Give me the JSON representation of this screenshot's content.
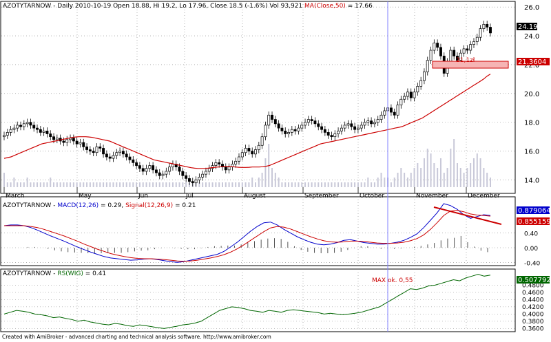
{
  "title_parts": {
    "symbol": "AZOTYTARNOW",
    "info": " - Daily 2010-10-19 Open 18.88, Hi 19.2, Lo 17.96, Close 18.5 (-1.6%) Vol 93,921 ",
    "ma_label": "MA(Close,50)",
    "ma_value": " = 17.66"
  },
  "macd_header": {
    "symbol": "AZOTYTARNOW",
    "macd_label": "MACD(12,26)",
    "macd_value": " = 0.29, ",
    "signal_label": "Signal(12,26,9)",
    "signal_value": " = 0.21"
  },
  "rs_header": {
    "symbol": "AZOTYTARNOW",
    "rs_label": "RS(WIG)",
    "rs_value": " = 0.41"
  },
  "footer": "Created with AmiBroker - advanced charting and technical analysis software. http://www.amibroker.com",
  "annotations": {
    "price_box_label": "21,1zł",
    "rs_max_label": "MAX ok. 0,55"
  },
  "value_boxes": {
    "last_price": "24.19",
    "box_level": "21.3604",
    "macd": "0.879064",
    "signal": "0.855159",
    "rs": "0.507792"
  },
  "colors": {
    "up_candle": "#ffffff",
    "down_candle": "#000000",
    "ma_line": "#cc0000",
    "macd_line": "#0000cc",
    "signal_line": "#cc0000",
    "rs_line": "#006600",
    "volume": "#c8c8d8",
    "cursor_line": "#8080ff",
    "annotation": "#cc0000",
    "grid": "#808080"
  },
  "chart_data": [
    {
      "type": "candlestick",
      "title": "AZOTYTARNOW - Daily",
      "months": [
        "March",
        "May",
        "Jun",
        "Jul",
        "August",
        "September",
        "October",
        "November",
        "December"
      ],
      "ylim": [
        13.5,
        26.2
      ],
      "yticks": [
        "14.0",
        "16.0",
        "18.0",
        "20.0",
        "22.0",
        "24.0",
        "26.0"
      ],
      "grid": true,
      "close": [
        17.1,
        17.3,
        17.5,
        17.6,
        17.8,
        17.7,
        17.9,
        18.0,
        17.8,
        17.6,
        17.5,
        17.3,
        17.4,
        17.2,
        17.0,
        16.8,
        16.9,
        16.7,
        16.6,
        16.8,
        16.9,
        16.7,
        16.5,
        16.6,
        16.3,
        16.1,
        16.0,
        15.9,
        16.3,
        16.2,
        15.8,
        15.6,
        15.5,
        15.7,
        15.9,
        16.0,
        15.8,
        15.6,
        15.4,
        15.2,
        15.0,
        14.8,
        14.6,
        14.8,
        15.0,
        14.7,
        14.5,
        14.3,
        14.4,
        14.6,
        14.9,
        15.1,
        14.9,
        14.6,
        14.3,
        14.1,
        13.9,
        13.8,
        14.0,
        14.2,
        14.4,
        14.6,
        14.8,
        15.0,
        15.2,
        15.1,
        14.9,
        14.7,
        14.9,
        15.1,
        15.3,
        15.6,
        15.9,
        16.2,
        16.0,
        15.8,
        16.1,
        16.4,
        17.0,
        17.8,
        18.5,
        18.2,
        17.9,
        17.6,
        17.4,
        17.2,
        17.3,
        17.5,
        17.4,
        17.6,
        17.8,
        18.0,
        18.2,
        18.1,
        17.9,
        17.7,
        17.5,
        17.3,
        17.1,
        17.0,
        17.2,
        17.4,
        17.6,
        17.8,
        17.9,
        17.7,
        17.5,
        17.6,
        17.8,
        18.0,
        18.1,
        17.9,
        18.0,
        18.2,
        18.5,
        18.8,
        19.0,
        18.7,
        18.5,
        19.2,
        19.6,
        19.8,
        20.1,
        19.7,
        20.1,
        20.5,
        20.9,
        21.5,
        22.3,
        23.0,
        23.5,
        23.2,
        22.6,
        21.4,
        22.2,
        23.0,
        22.6,
        22.3,
        22.8,
        23.1,
        23.0,
        23.4,
        23.6,
        23.9,
        24.5,
        24.8,
        24.6,
        24.2
      ],
      "ma50": [
        15.5,
        15.55,
        15.6,
        15.7,
        15.8,
        15.9,
        16.0,
        16.1,
        16.2,
        16.3,
        16.4,
        16.5,
        16.55,
        16.6,
        16.65,
        16.7,
        16.75,
        16.8,
        16.85,
        16.9,
        16.95,
        16.98,
        17.0,
        17.0,
        17.0,
        16.98,
        16.95,
        16.9,
        16.85,
        16.8,
        16.75,
        16.7,
        16.6,
        16.5,
        16.4,
        16.3,
        16.2,
        16.1,
        16.0,
        15.9,
        15.8,
        15.7,
        15.6,
        15.5,
        15.4,
        15.35,
        15.3,
        15.25,
        15.2,
        15.15,
        15.1,
        15.05,
        15.0,
        14.95,
        14.9,
        14.85,
        14.82,
        14.8,
        14.8,
        14.8,
        14.82,
        14.85,
        14.88,
        14.9,
        14.92,
        14.93,
        14.93,
        14.92,
        14.9,
        14.88,
        14.87,
        14.87,
        14.88,
        14.9,
        14.9,
        14.9,
        14.92,
        14.95,
        15.0,
        15.1,
        15.2,
        15.3,
        15.4,
        15.5,
        15.6,
        15.7,
        15.8,
        15.9,
        16.0,
        16.1,
        16.2,
        16.3,
        16.4,
        16.5,
        16.55,
        16.6,
        16.65,
        16.7,
        16.75,
        16.8,
        16.85,
        16.9,
        16.95,
        17.0,
        17.05,
        17.1,
        17.15,
        17.2,
        17.25,
        17.3,
        17.35,
        17.4,
        17.45,
        17.5,
        17.55,
        17.6,
        17.65,
        17.7,
        17.8,
        17.9,
        18.0,
        18.1,
        18.2,
        18.3,
        18.45,
        18.6,
        18.75,
        18.9,
        19.05,
        19.2,
        19.35,
        19.5,
        19.65,
        19.8,
        19.95,
        20.1,
        20.25,
        20.4,
        20.55,
        20.7,
        20.85,
        21.0,
        21.2,
        21.35
      ],
      "volume": [
        0.3,
        0.1,
        0.1,
        0.2,
        0.1,
        0.1,
        0.1,
        0.2,
        0.1,
        0.1,
        0.1,
        0.1,
        0.1,
        0.1,
        0.2,
        0.1,
        0.1,
        0.1,
        0.1,
        0.1,
        0.1,
        0.1,
        0.1,
        0.1,
        0.1,
        0.1,
        0.1,
        0.1,
        0.1,
        0.1,
        0.1,
        0.1,
        0.1,
        0.1,
        0.1,
        0.1,
        0.1,
        0.1,
        0.1,
        0.1,
        0.1,
        0.1,
        0.1,
        0.1,
        0.1,
        0.1,
        0.1,
        0.1,
        0.1,
        0.1,
        0.1,
        0.1,
        0.1,
        0.1,
        0.1,
        0.1,
        0.1,
        0.1,
        0.1,
        0.1,
        0.1,
        0.1,
        0.1,
        0.1,
        0.1,
        0.1,
        0.1,
        0.1,
        0.1,
        0.1,
        0.1,
        0.1,
        0.1,
        0.1,
        0.1,
        0.2,
        0.1,
        0.2,
        0.3,
        0.6,
        0.9,
        0.4,
        0.3,
        0.2,
        0.1,
        0.1,
        0.1,
        0.1,
        0.1,
        0.1,
        0.1,
        0.1,
        0.1,
        0.1,
        0.1,
        0.1,
        0.1,
        0.1,
        0.1,
        0.1,
        0.1,
        0.1,
        0.1,
        0.1,
        0.1,
        0.1,
        0.1,
        0.1,
        0.1,
        0.1,
        0.2,
        0.1,
        0.1,
        0.2,
        0.3,
        0.2,
        0.2,
        0.1,
        0.2,
        0.3,
        0.4,
        0.3,
        0.2,
        0.3,
        0.4,
        0.5,
        0.4,
        0.6,
        0.8,
        0.7,
        0.5,
        0.4,
        0.6,
        0.3,
        0.4,
        0.8,
        1.0,
        0.5,
        0.4,
        0.3,
        0.4,
        0.5,
        0.6,
        0.7,
        0.6,
        0.4,
        0.3,
        0.2
      ],
      "annotation_level": 21.1
    },
    {
      "type": "line",
      "title": "MACD(12,26) / Signal(12,26,9)",
      "ylim": [
        -0.45,
        1.2
      ],
      "yticks": [
        "-0.40",
        "0.00",
        "0.40"
      ],
      "series": [
        {
          "name": "MACD(12,26)",
          "values": [
            0.6,
            0.62,
            0.62,
            0.6,
            0.55,
            0.48,
            0.4,
            0.32,
            0.25,
            0.18,
            0.1,
            0.02,
            -0.05,
            -0.12,
            -0.18,
            -0.24,
            -0.28,
            -0.3,
            -0.32,
            -0.34,
            -0.33,
            -0.31,
            -0.3,
            -0.32,
            -0.35,
            -0.38,
            -0.4,
            -0.38,
            -0.34,
            -0.3,
            -0.26,
            -0.22,
            -0.18,
            -0.1,
            0.02,
            0.15,
            0.3,
            0.45,
            0.58,
            0.68,
            0.7,
            0.62,
            0.5,
            0.4,
            0.3,
            0.22,
            0.15,
            0.1,
            0.08,
            0.1,
            0.14,
            0.2,
            0.22,
            0.18,
            0.14,
            0.12,
            0.1,
            0.1,
            0.12,
            0.15,
            0.2,
            0.28,
            0.38,
            0.55,
            0.75,
            0.95,
            1.2,
            1.15,
            1.05,
            0.9,
            0.8,
            0.85,
            0.9,
            0.88
          ]
        },
        {
          "name": "Signal(12,26,9)",
          "values": [
            0.6,
            0.6,
            0.6,
            0.6,
            0.58,
            0.55,
            0.5,
            0.44,
            0.38,
            0.32,
            0.25,
            0.18,
            0.1,
            0.03,
            -0.04,
            -0.1,
            -0.16,
            -0.2,
            -0.24,
            -0.27,
            -0.29,
            -0.3,
            -0.3,
            -0.31,
            -0.32,
            -0.34,
            -0.36,
            -0.37,
            -0.36,
            -0.34,
            -0.31,
            -0.28,
            -0.24,
            -0.19,
            -0.12,
            -0.03,
            0.08,
            0.2,
            0.32,
            0.44,
            0.54,
            0.58,
            0.56,
            0.51,
            0.44,
            0.37,
            0.3,
            0.24,
            0.19,
            0.16,
            0.15,
            0.16,
            0.18,
            0.18,
            0.17,
            0.15,
            0.13,
            0.12,
            0.12,
            0.13,
            0.15,
            0.19,
            0.25,
            0.35,
            0.5,
            0.68,
            0.88,
            1.0,
            1.02,
            0.98,
            0.92,
            0.89,
            0.88,
            0.86
          ]
        }
      ],
      "histogram": [
        0.0,
        0.02,
        0.02,
        0.0,
        -0.03,
        -0.07,
        -0.1,
        -0.12,
        -0.13,
        -0.14,
        -0.15,
        -0.16,
        -0.15,
        -0.15,
        -0.14,
        -0.14,
        -0.12,
        -0.1,
        -0.08,
        -0.07,
        -0.04,
        -0.01,
        0.0,
        -0.01,
        -0.03,
        -0.04,
        -0.04,
        -0.01,
        0.02,
        0.04,
        0.05,
        0.06,
        0.06,
        0.09,
        0.14,
        0.18,
        0.22,
        0.25,
        0.26,
        0.24,
        0.16,
        0.04,
        -0.06,
        -0.11,
        -0.14,
        -0.15,
        -0.15,
        -0.14,
        -0.11,
        -0.06,
        -0.01,
        0.04,
        0.04,
        0.0,
        -0.03,
        -0.03,
        -0.03,
        -0.02,
        0.0,
        0.02,
        0.05,
        0.09,
        0.13,
        0.2,
        0.25,
        0.27,
        0.32,
        0.15,
        0.03,
        -0.08,
        -0.12,
        -0.04,
        0.02,
        0.02
      ]
    },
    {
      "type": "line",
      "title": "RS(WIG)",
      "ylim": [
        0.355,
        0.515
      ],
      "yticks": [
        "0.3600",
        "0.3800",
        "0.4000",
        "0.4200",
        "0.4400",
        "0.4600",
        "0.4800"
      ],
      "series": [
        {
          "name": "RS(WIG)",
          "values": [
            0.4,
            0.405,
            0.41,
            0.408,
            0.405,
            0.4,
            0.398,
            0.395,
            0.39,
            0.392,
            0.388,
            0.385,
            0.38,
            0.383,
            0.378,
            0.375,
            0.372,
            0.37,
            0.374,
            0.372,
            0.368,
            0.366,
            0.37,
            0.368,
            0.365,
            0.362,
            0.36,
            0.363,
            0.366,
            0.37,
            0.372,
            0.375,
            0.38,
            0.39,
            0.4,
            0.41,
            0.415,
            0.42,
            0.418,
            0.415,
            0.41,
            0.408,
            0.405,
            0.41,
            0.408,
            0.405,
            0.41,
            0.412,
            0.41,
            0.408,
            0.406,
            0.404,
            0.4,
            0.402,
            0.4,
            0.398,
            0.4,
            0.402,
            0.405,
            0.41,
            0.415,
            0.42,
            0.43,
            0.44,
            0.45,
            0.46,
            0.47,
            0.468,
            0.472,
            0.478,
            0.48,
            0.485,
            0.49,
            0.495,
            0.492,
            0.5,
            0.505,
            0.51,
            0.505,
            0.508
          ]
        }
      ]
    }
  ]
}
